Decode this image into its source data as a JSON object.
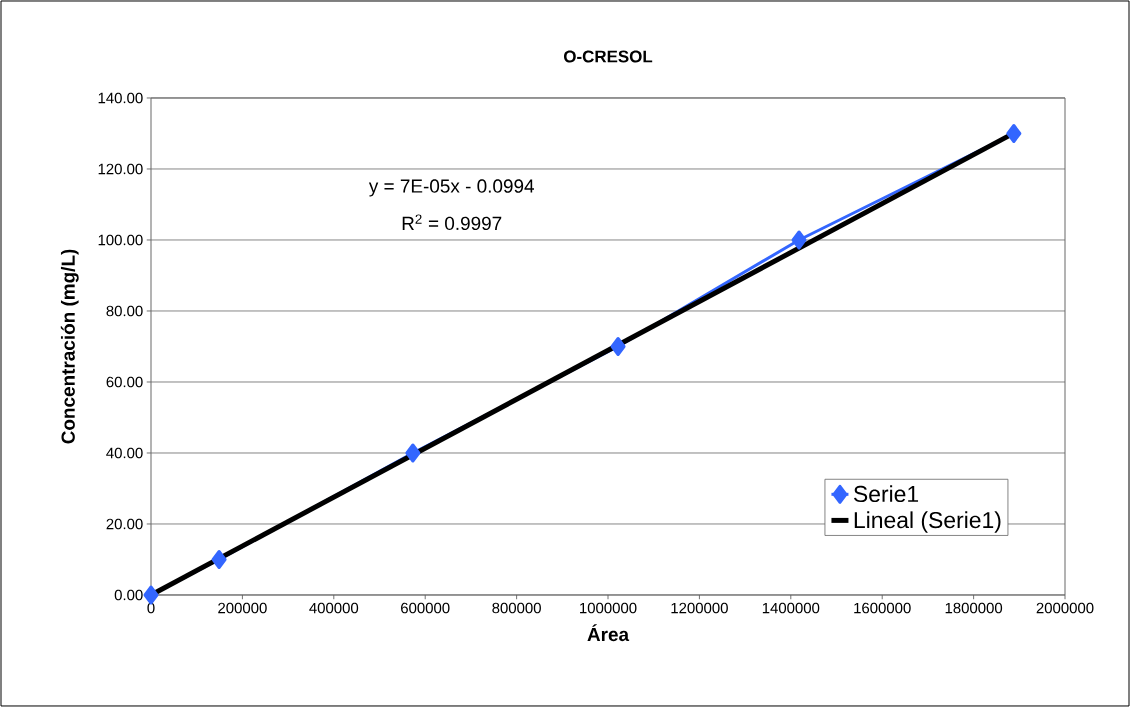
{
  "chart_data": {
    "type": "line",
    "title": "O-CRESOL",
    "xlabel": "Área",
    "ylabel": "Concentración (mg/L)",
    "xlim": [
      0,
      2000000
    ],
    "ylim": [
      0,
      140
    ],
    "xticks": [
      0,
      200000,
      400000,
      600000,
      800000,
      1000000,
      1200000,
      1400000,
      1600000,
      1800000,
      2000000
    ],
    "yticks": [
      {
        "value": 0,
        "label": "0.00"
      },
      {
        "value": 20,
        "label": "20.00"
      },
      {
        "value": 40,
        "label": "40.00"
      },
      {
        "value": 60,
        "label": "60.00"
      },
      {
        "value": 80,
        "label": "80.00"
      },
      {
        "value": 100,
        "label": "100.00"
      },
      {
        "value": 120,
        "label": "120.00"
      },
      {
        "value": 140,
        "label": "140.00"
      }
    ],
    "grid": "y",
    "legend": "bottom right",
    "marker": "diamond",
    "line_style": "solid",
    "annotations": [
      "y = 7E-05x - 0.0994",
      "R$^{2}$ = 0.9997"
    ],
    "series": [
      {
        "name": "Serie1",
        "color": "#3366ff",
        "x": [
          0,
          149000,
          573000,
          1022000,
          1418000,
          1888000
        ],
        "values": [
          0,
          10,
          40,
          70,
          100,
          130
        ]
      },
      {
        "name": "Lineal (Serie1)",
        "type": "line",
        "marker": "none",
        "color": "#000000",
        "x": [
          0,
          1888000
        ],
        "values": [
          0,
          130.1
        ]
      }
    ]
  }
}
